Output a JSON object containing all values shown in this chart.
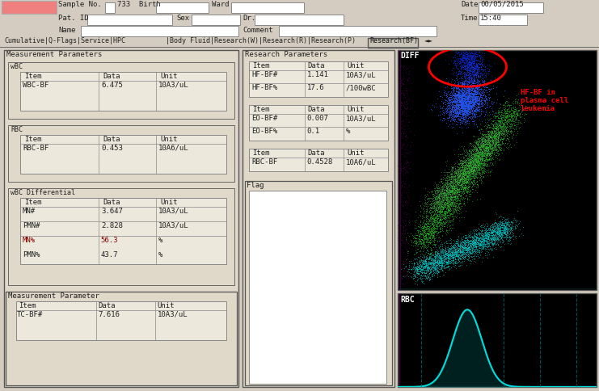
{
  "bg_color": "#d4ccc0",
  "header": {
    "sample_no": "733",
    "date": "00/05/2015",
    "time": "15:40"
  },
  "tabs_text": "Cumulative|Q-Flags|Service|HPC         |Body Fluid|Research(W)|Research(R)|Research(P) Research(BF) ◄►",
  "meas_params": {
    "wbc_bf": "6.475",
    "wbc_bf_unit": "10A3/uL",
    "rbc_bf": "0.453",
    "rbc_bf_unit": "10A6/uL"
  },
  "wbc_diff": {
    "mn_num": "3.647",
    "pmn_num": "2.828",
    "mn_pct": "56.3",
    "pmn_pct": "43.7",
    "unit_num": "10A3/uL",
    "unit_pct": "%"
  },
  "meas_param": {
    "tc_bfnum": "7.616",
    "tc_bf_unit": "10A3/uL"
  },
  "research_params": {
    "hf_bfnum": "1.141",
    "hf_bfnum_unit": "10A3/uL",
    "hf_bfpct": "17.6",
    "hf_bfpct_unit": "/100wBC",
    "eo_bfnum": "0.007",
    "eo_bfnum_unit": "10A3/uL",
    "eo_bfpct": "0.1",
    "eo_bfpct_unit": "%",
    "rbc_bf": "0.4528",
    "rbc_bf_unit": "10A6/uL"
  },
  "scatter_label": "DIFF",
  "rbc_label": "RBC",
  "annotation": "HF-BF in\nplasma cell\nleukemia",
  "panel_bg": "#e0d8c8",
  "table_bg": "#ece8dc",
  "header_bg_left": "#f08080",
  "scatter_bg": "#000000",
  "tab_active_bg": "#d8d0c0",
  "tab_highlight_bg": "#c8c0b4"
}
